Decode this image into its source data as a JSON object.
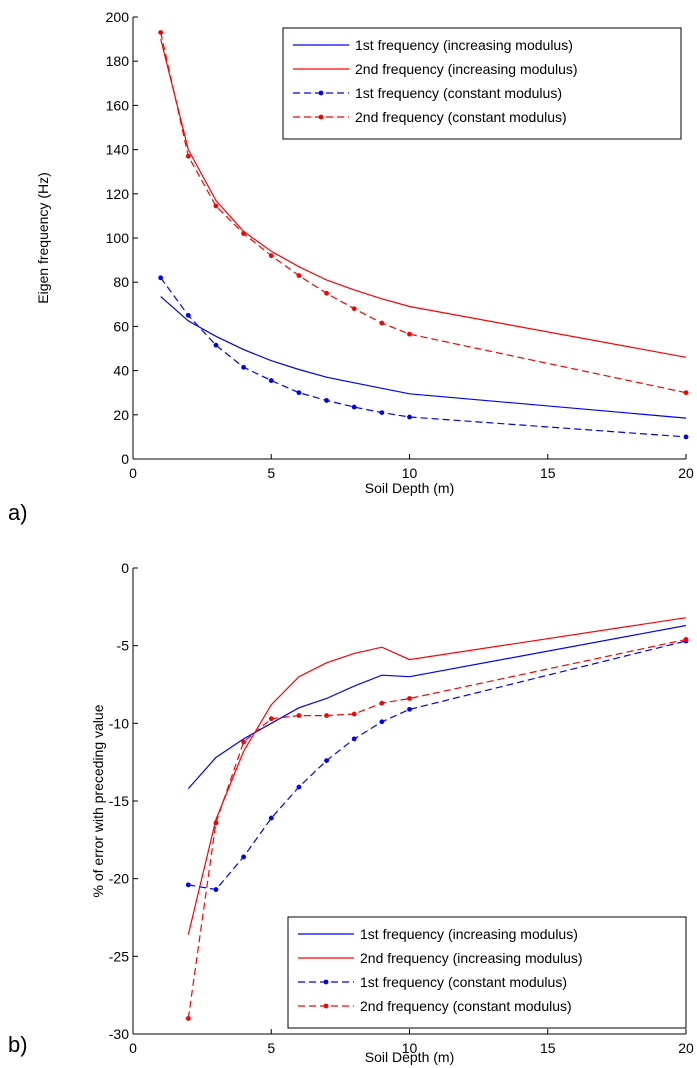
{
  "chart_data": [
    {
      "type": "line",
      "panel_label": "a)",
      "xlabel": "Soil Depth (m)",
      "ylabel": "Eigen frequency (Hz)",
      "xlim": [
        0,
        20
      ],
      "ylim": [
        0,
        200
      ],
      "xticks": [
        0,
        5,
        10,
        15,
        20
      ],
      "yticks": [
        0,
        20,
        40,
        60,
        80,
        100,
        120,
        140,
        160,
        180,
        200
      ],
      "grid": false,
      "legend_position": "top-right",
      "series": [
        {
          "name": "1st frequency (increasing modulus)",
          "color": "#0000ff",
          "style": "solid",
          "marker": "none",
          "x": [
            1,
            2,
            3,
            4,
            5,
            6,
            7,
            8,
            9,
            10,
            20
          ],
          "y": [
            73.5,
            62.5,
            55.5,
            49.5,
            44.5,
            40.5,
            37,
            34.5,
            32,
            29.5,
            18.5
          ]
        },
        {
          "name": "2nd frequency (increasing modulus)",
          "color": "#ff0000",
          "style": "solid",
          "marker": "none",
          "x": [
            1,
            2,
            3,
            4,
            5,
            6,
            7,
            8,
            9,
            10,
            20
          ],
          "y": [
            190,
            140,
            117,
            103,
            94,
            87,
            81,
            76.5,
            72.5,
            69,
            46
          ]
        },
        {
          "name": "1st frequency (constant modulus)",
          "color": "#0000ff",
          "style": "dashed",
          "marker": "dot",
          "x": [
            1,
            2,
            3,
            4,
            5,
            6,
            7,
            8,
            9,
            10,
            20
          ],
          "y": [
            82,
            65,
            51.5,
            41.5,
            35.5,
            30,
            26.5,
            23.5,
            21,
            19,
            10
          ]
        },
        {
          "name": "2nd frequency (constant modulus)",
          "color": "#ff0000",
          "style": "dashed",
          "marker": "dot",
          "x": [
            1,
            2,
            3,
            4,
            5,
            6,
            7,
            8,
            9,
            10,
            20
          ],
          "y": [
            193,
            137,
            114.5,
            102,
            92,
            83,
            75,
            68,
            61.5,
            56.5,
            30
          ]
        }
      ]
    },
    {
      "type": "line",
      "panel_label": "b)",
      "xlabel": "Soil Depth (m)",
      "ylabel": "% of error with preceding value",
      "xlim": [
        0,
        20
      ],
      "ylim": [
        -30,
        0
      ],
      "xticks": [
        0,
        5,
        10,
        15,
        20
      ],
      "yticks": [
        -30,
        -25,
        -20,
        -15,
        -10,
        -5,
        0
      ],
      "grid": false,
      "legend_position": "bottom-right",
      "series": [
        {
          "name": "1st frequency (increasing modulus)",
          "color": "#0000ff",
          "style": "solid",
          "marker": "none",
          "x": [
            2,
            3,
            4,
            5,
            6,
            7,
            8,
            9,
            10,
            20
          ],
          "y": [
            -14.2,
            -12.2,
            -11,
            -10,
            -9,
            -8.4,
            -7.6,
            -6.9,
            -7,
            -3.7
          ]
        },
        {
          "name": "2nd frequency (increasing modulus)",
          "color": "#ff0000",
          "style": "solid",
          "marker": "none",
          "x": [
            2,
            3,
            4,
            5,
            6,
            7,
            8,
            9,
            10,
            20
          ],
          "y": [
            -23.6,
            -16.2,
            -11.8,
            -8.8,
            -7,
            -6.1,
            -5.5,
            -5.1,
            -5.9,
            -3.2
          ]
        },
        {
          "name": "1st frequency (constant modulus)",
          "color": "#0000ff",
          "style": "dashed",
          "marker": "dot",
          "x": [
            2,
            3,
            4,
            5,
            6,
            7,
            8,
            9,
            10,
            20
          ],
          "y": [
            -20.4,
            -20.7,
            -18.6,
            -16.1,
            -14.1,
            -12.4,
            -11,
            -9.9,
            -9.1,
            -4.7
          ]
        },
        {
          "name": "2nd frequency (constant modulus)",
          "color": "#ff0000",
          "style": "dashed",
          "marker": "dot",
          "x": [
            2,
            3,
            4,
            5,
            6,
            7,
            8,
            9,
            10,
            20
          ],
          "y": [
            -29,
            -16.4,
            -11.2,
            -9.7,
            -9.5,
            -9.5,
            -9.4,
            -8.7,
            -8.4,
            -4.6
          ]
        }
      ]
    }
  ]
}
